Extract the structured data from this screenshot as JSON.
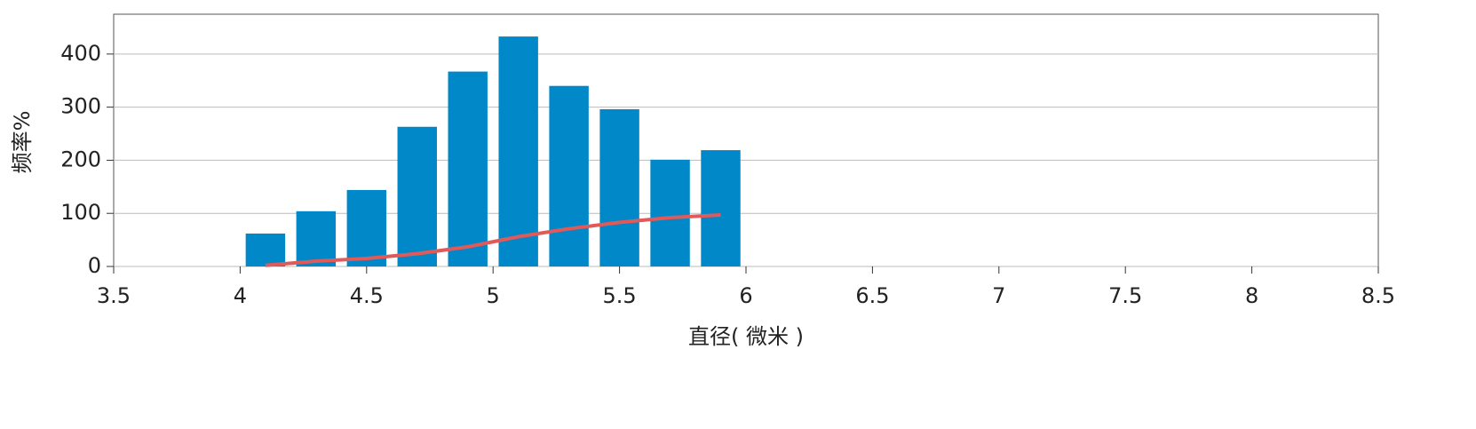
{
  "chart_data": {
    "type": "histogram",
    "xlabel": "直径( 微米 )",
    "ylabel": "频率%",
    "bins": [
      4.0,
      4.2,
      4.4,
      4.6,
      4.8,
      5.0,
      5.2,
      5.4,
      5.6,
      5.8,
      6.0
    ],
    "counts": [
      62,
      104,
      144,
      263,
      367,
      433,
      340,
      296,
      201,
      219
    ],
    "color": "#0088c8",
    "line": {
      "color": "#e05a5a",
      "x": [
        4.1,
        4.3,
        4.5,
        4.7,
        4.9,
        5.1,
        5.3,
        5.5,
        5.7,
        5.9
      ],
      "values": [
        2,
        10,
        15,
        24,
        37,
        56,
        71,
        83,
        92,
        97
      ]
    },
    "xlim": [
      3.5,
      8.5
    ],
    "xticks": [
      3.5,
      4,
      4.5,
      5,
      5.5,
      6,
      6.5,
      7,
      7.5,
      8,
      8.5
    ],
    "ylim": [
      0,
      475
    ],
    "yticks": [
      0,
      100,
      200,
      300,
      400
    ],
    "grid": true
  }
}
